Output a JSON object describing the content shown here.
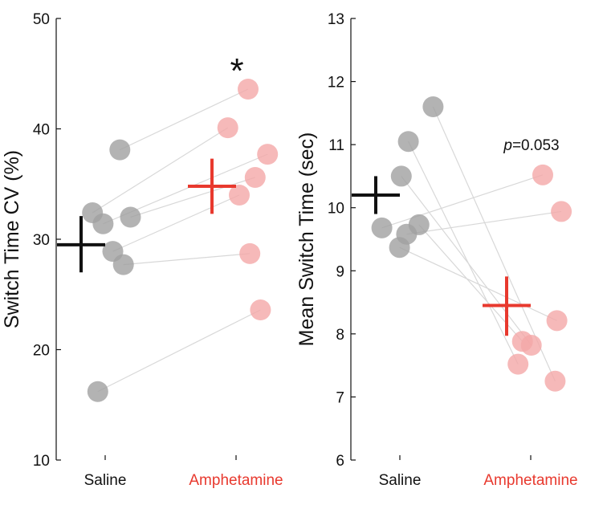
{
  "chart_data": [
    {
      "type": "scatter",
      "ylabel": "Switch Time CV (%)",
      "ylim": [
        10,
        50
      ],
      "yticks": [
        10,
        20,
        30,
        40,
        50
      ],
      "categories": [
        "Saline",
        "Amphetamine"
      ],
      "category_colors": [
        "#111111",
        "#e8392e"
      ],
      "point_colors": [
        "#a0a0a0",
        "#f4a8a8"
      ],
      "pairs": [
        {
          "saline": 38.1,
          "amphetamine": 43.6,
          "jitter": [
            0.63,
            0.6
          ]
        },
        {
          "saline": 32.4,
          "amphetamine": 40.1,
          "jitter": [
            0.32,
            0.37
          ]
        },
        {
          "saline": 31.4,
          "amphetamine": 37.7,
          "jitter": [
            0.44,
            0.82
          ]
        },
        {
          "saline": 32.0,
          "amphetamine": 35.6,
          "jitter": [
            0.75,
            0.68
          ]
        },
        {
          "saline": 28.9,
          "amphetamine": 34.0,
          "jitter": [
            0.55,
            0.5
          ]
        },
        {
          "saline": 27.7,
          "amphetamine": 28.7,
          "jitter": [
            0.67,
            0.62
          ]
        },
        {
          "saline": 16.2,
          "amphetamine": 23.6,
          "jitter": [
            0.38,
            0.74
          ]
        }
      ],
      "summary": [
        {
          "category": "Saline",
          "mean": 29.5,
          "err_low": 27.0,
          "err_high": 32.1
        },
        {
          "category": "Amphetamine",
          "mean": 34.8,
          "err_low": 32.3,
          "err_high": 37.3
        }
      ],
      "annotation": {
        "text": "*",
        "category": "Amphetamine",
        "y": 46.8
      }
    },
    {
      "type": "scatter",
      "ylabel": "Mean Switch Time (sec)",
      "ylim": [
        6,
        13
      ],
      "yticks": [
        6,
        7,
        8,
        9,
        10,
        11,
        12,
        13
      ],
      "categories": [
        "Saline",
        "Amphetamine"
      ],
      "category_colors": [
        "#111111",
        "#e8392e"
      ],
      "point_colors": [
        "#a0a0a0",
        "#f4a8a8"
      ],
      "pairs": [
        {
          "saline": 11.6,
          "amphetamine": 7.25,
          "jitter": [
            0.84,
            0.74
          ]
        },
        {
          "saline": 11.05,
          "amphetamine": 7.52,
          "jitter": [
            0.56,
            0.32
          ]
        },
        {
          "saline": 10.5,
          "amphetamine": 7.82,
          "jitter": [
            0.48,
            0.47
          ]
        },
        {
          "saline": 9.73,
          "amphetamine": 7.88,
          "jitter": [
            0.68,
            0.37
          ]
        },
        {
          "saline": 9.68,
          "amphetamine": 10.52,
          "jitter": [
            0.26,
            0.6
          ]
        },
        {
          "saline": 9.58,
          "amphetamine": 9.94,
          "jitter": [
            0.54,
            0.81
          ]
        },
        {
          "saline": 9.37,
          "amphetamine": 8.21,
          "jitter": [
            0.46,
            0.76
          ]
        }
      ],
      "summary": [
        {
          "category": "Saline",
          "mean": 10.2,
          "err_low": 9.9,
          "err_high": 10.5
        },
        {
          "category": "Amphetamine",
          "mean": 8.45,
          "err_low": 7.97,
          "err_high": 8.91
        }
      ],
      "annotation": {
        "p_italic": "p",
        "text": "=0.053",
        "y": 10.97
      }
    }
  ]
}
